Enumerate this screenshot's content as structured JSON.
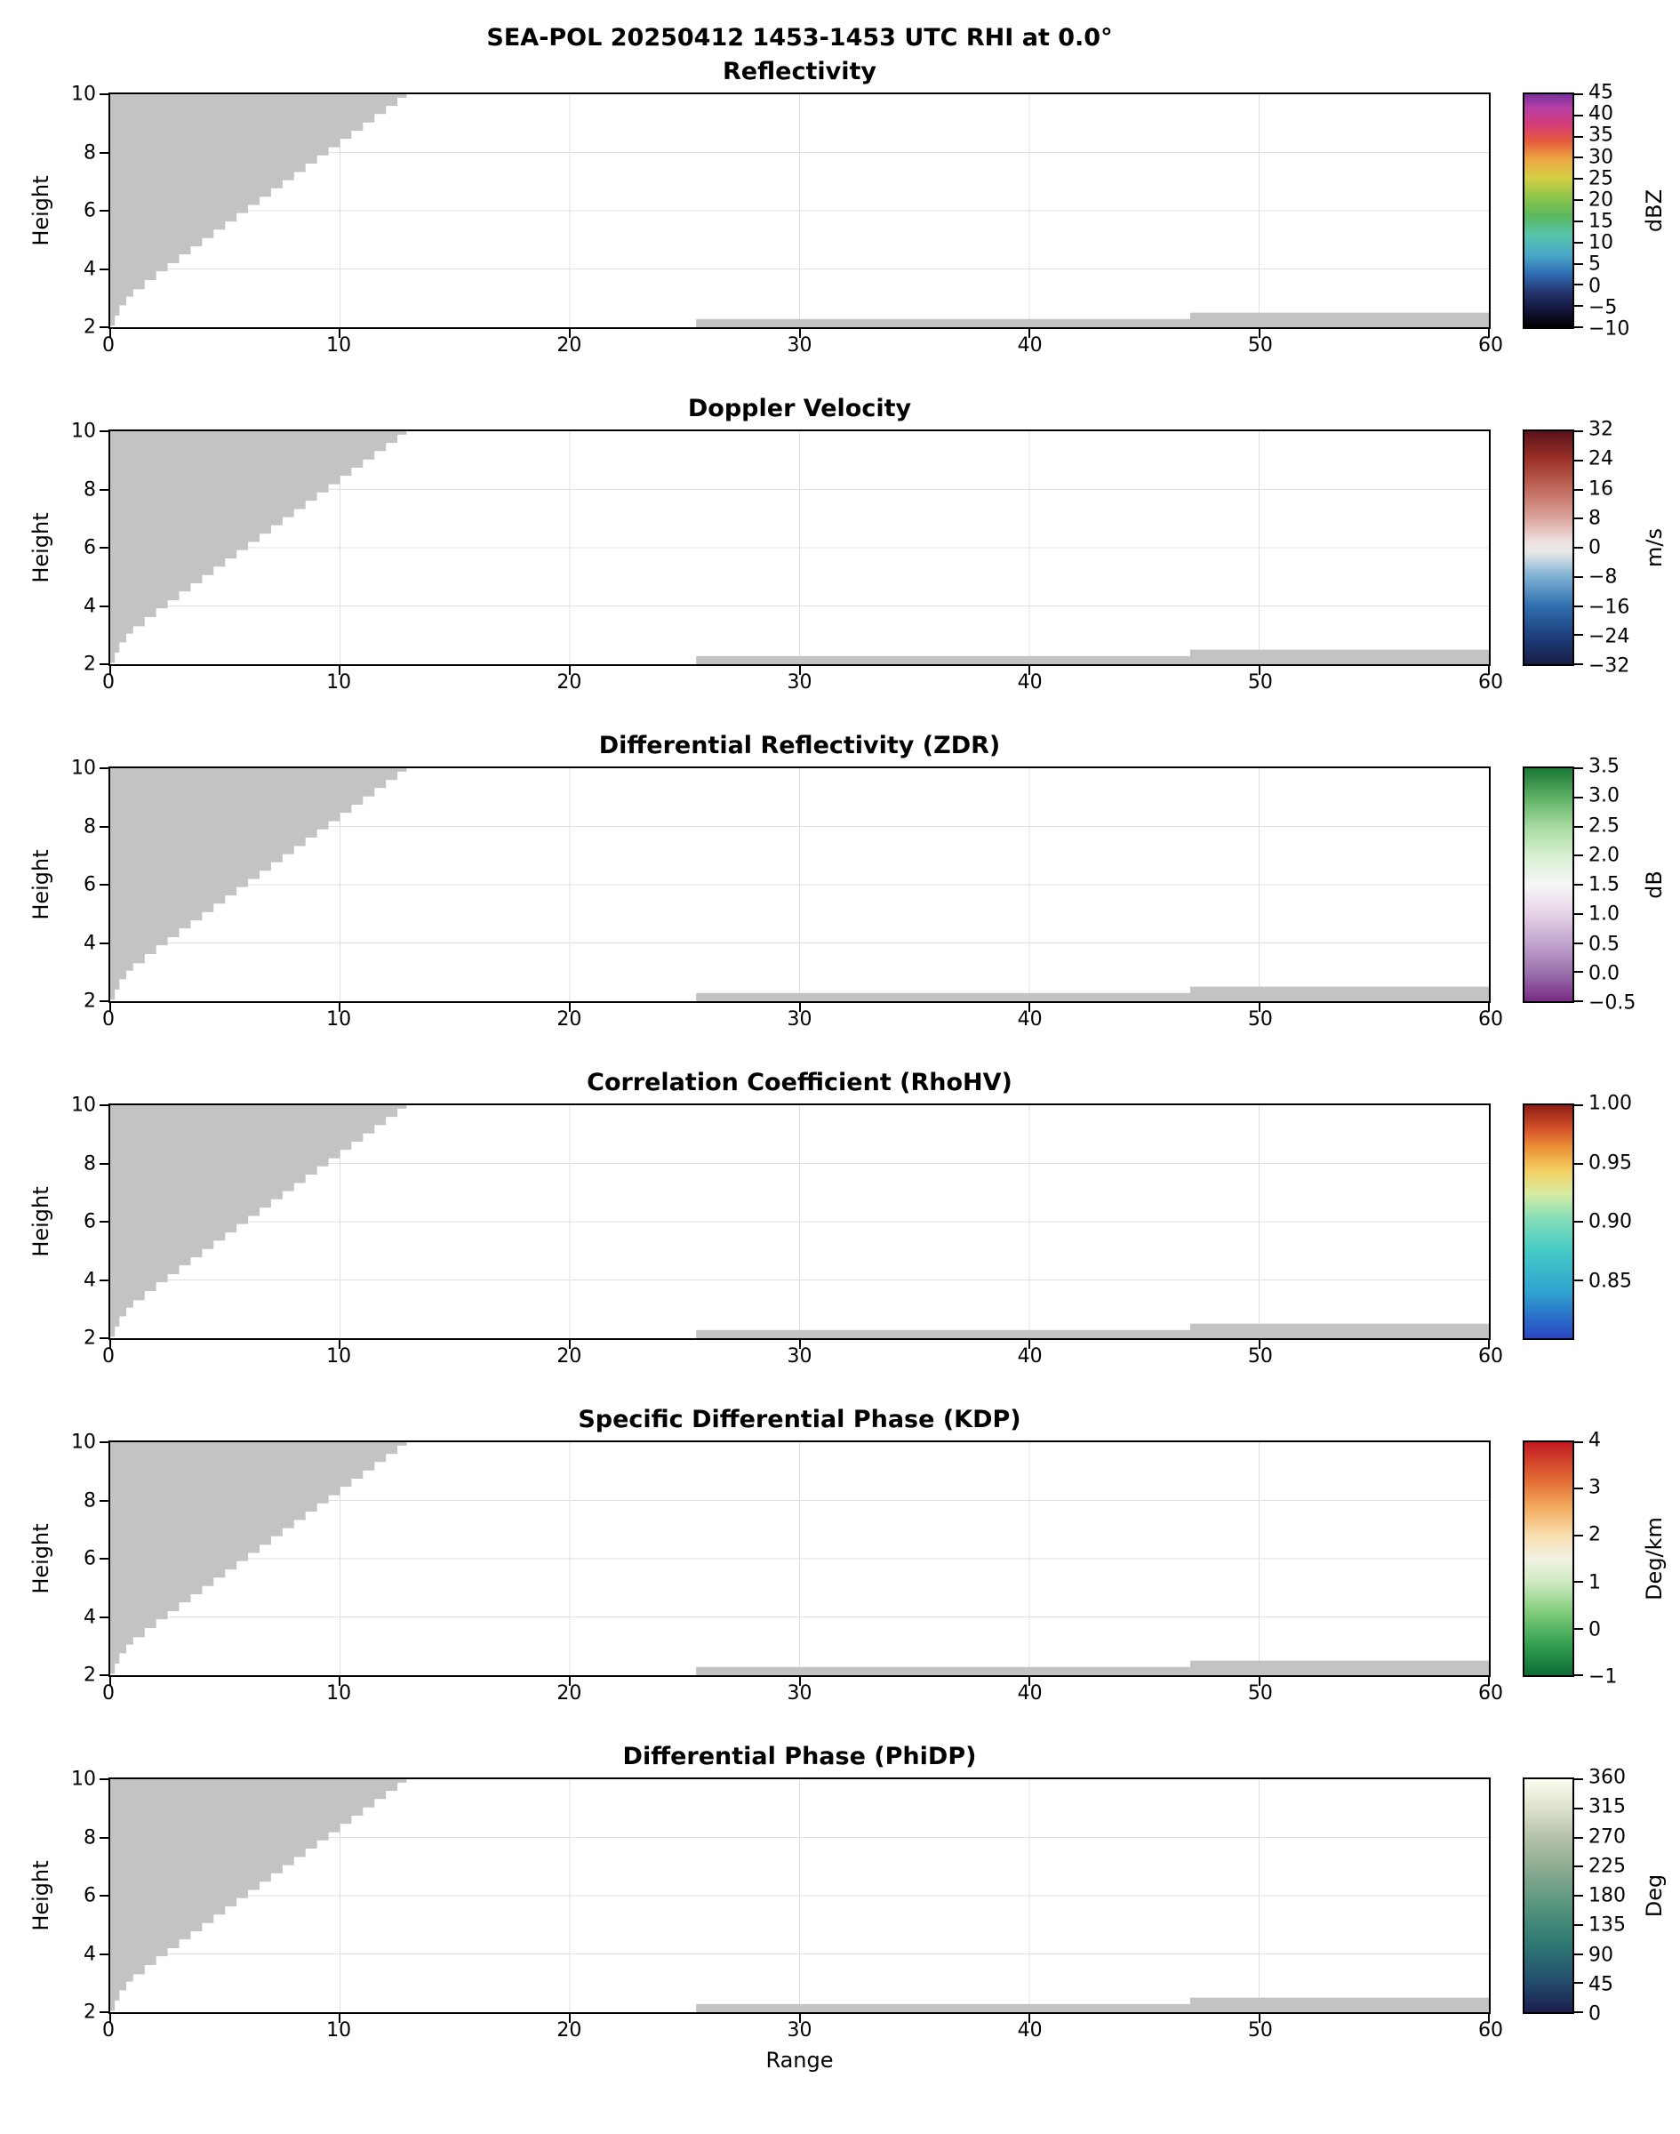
{
  "chart_data": {
    "type": "heatmap",
    "suptitle": "SEA-POL 20250412 1453-1453 UTC RHI at 0.0°",
    "xlabel": "Range",
    "ylabel": "Height",
    "x_range": [
      0,
      60
    ],
    "y_range": [
      2,
      10
    ],
    "x_ticks": [
      0,
      10,
      20,
      30,
      40,
      50,
      60
    ],
    "y_ticks": [
      2,
      4,
      6,
      8,
      10
    ],
    "grid_x": [
      10,
      20,
      30,
      40,
      50
    ],
    "grid_y": [
      4,
      6,
      8
    ],
    "grid": true,
    "no_data_color": "#c3c3c3",
    "data_note": "All six RHI panels show only gray no-data / masked regions; no colored echo values are plotted.",
    "masked_wedge_boundary": [
      [
        0,
        2.05
      ],
      [
        0.2,
        2.4
      ],
      [
        0.4,
        2.75
      ],
      [
        0.7,
        3.05
      ],
      [
        1.0,
        3.3
      ],
      [
        1.5,
        3.62
      ],
      [
        2.0,
        3.92
      ],
      [
        2.5,
        4.2
      ],
      [
        3.0,
        4.5
      ],
      [
        3.5,
        4.78
      ],
      [
        4.0,
        5.06
      ],
      [
        4.5,
        5.35
      ],
      [
        5.0,
        5.63
      ],
      [
        5.5,
        5.92
      ],
      [
        6.0,
        6.2
      ],
      [
        6.5,
        6.48
      ],
      [
        7.0,
        6.77
      ],
      [
        7.5,
        7.05
      ],
      [
        8.0,
        7.33
      ],
      [
        8.5,
        7.62
      ],
      [
        9.0,
        7.9
      ],
      [
        9.5,
        8.18
      ],
      [
        10.0,
        8.47
      ],
      [
        10.5,
        8.75
      ],
      [
        11.0,
        9.03
      ],
      [
        11.5,
        9.32
      ],
      [
        12.0,
        9.6
      ],
      [
        12.5,
        9.88
      ],
      [
        12.9,
        10.0
      ]
    ],
    "bottom_strips": [
      {
        "x0": 25.5,
        "x1": 47,
        "y0": 2,
        "y1": 2.28
      },
      {
        "x0": 47,
        "x1": 60,
        "y0": 2,
        "y1": 2.5
      }
    ],
    "panels": [
      {
        "title": "Reflectivity",
        "unit": "dBZ",
        "cbar_min": -10,
        "cbar_max": 45,
        "cbar_ticks": [
          {
            "v": 45,
            "label": "45"
          },
          {
            "v": 40,
            "label": "40"
          },
          {
            "v": 35,
            "label": "35"
          },
          {
            "v": 30,
            "label": "30"
          },
          {
            "v": 25,
            "label": "25"
          },
          {
            "v": 20,
            "label": "20"
          },
          {
            "v": 15,
            "label": "15"
          },
          {
            "v": 10,
            "label": "10"
          },
          {
            "v": 5,
            "label": "5"
          },
          {
            "v": 0,
            "label": "0"
          },
          {
            "v": -5,
            "label": "−5"
          },
          {
            "v": -10,
            "label": "−10"
          }
        ],
        "cmap": [
          [
            0,
            "#000000"
          ],
          [
            0.07,
            "#131337"
          ],
          [
            0.15,
            "#23356f"
          ],
          [
            0.23,
            "#2f6db3"
          ],
          [
            0.31,
            "#49a7c6"
          ],
          [
            0.4,
            "#57c4a8"
          ],
          [
            0.48,
            "#5cb85c"
          ],
          [
            0.56,
            "#8ec549"
          ],
          [
            0.64,
            "#d6cf45"
          ],
          [
            0.72,
            "#eda742"
          ],
          [
            0.8,
            "#e4593c"
          ],
          [
            0.87,
            "#d33c77"
          ],
          [
            0.94,
            "#b83fa5"
          ],
          [
            1,
            "#772f9e"
          ]
        ]
      },
      {
        "title": "Doppler Velocity",
        "unit": "m/s",
        "cbar_min": -32,
        "cbar_max": 32,
        "cbar_ticks": [
          {
            "v": 32,
            "label": "32"
          },
          {
            "v": 24,
            "label": "24"
          },
          {
            "v": 16,
            "label": "16"
          },
          {
            "v": 8,
            "label": "8"
          },
          {
            "v": 0,
            "label": "0"
          },
          {
            "v": -8,
            "label": "−8"
          },
          {
            "v": -16,
            "label": "−16"
          },
          {
            "v": -24,
            "label": "−24"
          },
          {
            "v": -32,
            "label": "−32"
          }
        ],
        "cmap": [
          [
            0,
            "#161d44"
          ],
          [
            0.12,
            "#1e3f7d"
          ],
          [
            0.25,
            "#2f6fae"
          ],
          [
            0.38,
            "#7fb2d4"
          ],
          [
            0.48,
            "#e8e7e6"
          ],
          [
            0.52,
            "#eee4e2"
          ],
          [
            0.62,
            "#dba8a0"
          ],
          [
            0.75,
            "#c26a5d"
          ],
          [
            0.88,
            "#9c3127"
          ],
          [
            1,
            "#59121a"
          ]
        ]
      },
      {
        "title": "Differential Reflectivity (ZDR)",
        "unit": "dB",
        "cbar_min": -0.5,
        "cbar_max": 3.5,
        "cbar_ticks": [
          {
            "v": 3.5,
            "label": "3.5"
          },
          {
            "v": 3.0,
            "label": "3.0"
          },
          {
            "v": 2.5,
            "label": "2.5"
          },
          {
            "v": 2.0,
            "label": "2.0"
          },
          {
            "v": 1.5,
            "label": "1.5"
          },
          {
            "v": 1.0,
            "label": "1.0"
          },
          {
            "v": 0.5,
            "label": "0.5"
          },
          {
            "v": 0.0,
            "label": "0.0"
          },
          {
            "v": -0.5,
            "label": "−0.5"
          }
        ],
        "cmap": [
          [
            0,
            "#762a83"
          ],
          [
            0.12,
            "#9970ab"
          ],
          [
            0.25,
            "#c2a5cf"
          ],
          [
            0.38,
            "#e7d4e8"
          ],
          [
            0.5,
            "#f7f7f7"
          ],
          [
            0.62,
            "#d9f0d3"
          ],
          [
            0.75,
            "#a6dba0"
          ],
          [
            0.88,
            "#5aae61"
          ],
          [
            1,
            "#1b7837"
          ]
        ]
      },
      {
        "title": "Correlation Coefficient (RhoHV)",
        "unit": "",
        "cbar_min": 0.8,
        "cbar_max": 1.0,
        "cbar_ticks": [
          {
            "v": 1.0,
            "label": "1.00"
          },
          {
            "v": 0.95,
            "label": "0.95"
          },
          {
            "v": 0.9,
            "label": "0.90"
          },
          {
            "v": 0.85,
            "label": "0.85"
          }
        ],
        "cmap": [
          [
            0,
            "#2946c4"
          ],
          [
            0.2,
            "#2fa3d0"
          ],
          [
            0.38,
            "#46ccc5"
          ],
          [
            0.52,
            "#8adfb8"
          ],
          [
            0.62,
            "#d8eca2"
          ],
          [
            0.72,
            "#f3cf62"
          ],
          [
            0.82,
            "#ea9136"
          ],
          [
            0.9,
            "#d4502a"
          ],
          [
            1,
            "#8f1d14"
          ]
        ]
      },
      {
        "title": "Specific Differential Phase (KDP)",
        "unit": "Deg/km",
        "cbar_min": -1,
        "cbar_max": 4,
        "cbar_ticks": [
          {
            "v": 4,
            "label": "4"
          },
          {
            "v": 3,
            "label": "3"
          },
          {
            "v": 2,
            "label": "2"
          },
          {
            "v": 1,
            "label": "1"
          },
          {
            "v": 0,
            "label": "0"
          },
          {
            "v": -1,
            "label": "−1"
          }
        ],
        "cmap": [
          [
            0,
            "#0c6b33"
          ],
          [
            0.14,
            "#37a352"
          ],
          [
            0.28,
            "#86cf7f"
          ],
          [
            0.4,
            "#cfeac2"
          ],
          [
            0.5,
            "#f2f2e4"
          ],
          [
            0.6,
            "#f8ddae"
          ],
          [
            0.72,
            "#f2ab5e"
          ],
          [
            0.84,
            "#e26a33"
          ],
          [
            1,
            "#c21a22"
          ]
        ]
      },
      {
        "title": "Differential Phase (PhiDP)",
        "unit": "Deg",
        "cbar_min": 0,
        "cbar_max": 360,
        "cbar_ticks": [
          {
            "v": 360,
            "label": "360"
          },
          {
            "v": 315,
            "label": "315"
          },
          {
            "v": 270,
            "label": "270"
          },
          {
            "v": 225,
            "label": "225"
          },
          {
            "v": 180,
            "label": "180"
          },
          {
            "v": 135,
            "label": "135"
          },
          {
            "v": 90,
            "label": "90"
          },
          {
            "v": 45,
            "label": "45"
          },
          {
            "v": 0,
            "label": "0"
          }
        ],
        "cmap": [
          [
            0,
            "#1b1e4e"
          ],
          [
            0.15,
            "#24536f"
          ],
          [
            0.3,
            "#2f7a72"
          ],
          [
            0.45,
            "#54937d"
          ],
          [
            0.6,
            "#86a98f"
          ],
          [
            0.75,
            "#b5c2a9"
          ],
          [
            0.88,
            "#dfe3cd"
          ],
          [
            1,
            "#fbfcef"
          ]
        ]
      }
    ]
  }
}
